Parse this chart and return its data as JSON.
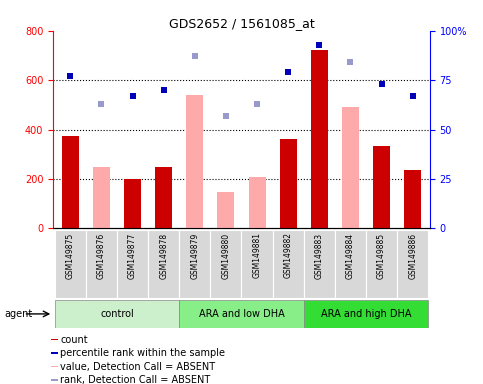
{
  "title": "GDS2652 / 1561085_at",
  "samples": [
    "GSM149875",
    "GSM149876",
    "GSM149877",
    "GSM149878",
    "GSM149879",
    "GSM149880",
    "GSM149881",
    "GSM149882",
    "GSM149883",
    "GSM149884",
    "GSM149885",
    "GSM149886"
  ],
  "groups": [
    {
      "label": "control",
      "color": "#ccf0cc",
      "start": 0,
      "end": 4
    },
    {
      "label": "ARA and low DHA",
      "color": "#88ee88",
      "start": 4,
      "end": 8
    },
    {
      "label": "ARA and high DHA",
      "color": "#33dd33",
      "start": 8,
      "end": 12
    }
  ],
  "bar_present_color": "#cc0000",
  "bar_absent_color": "#ffaaaa",
  "dot_present_color": "#0000bb",
  "dot_absent_color": "#9999cc",
  "present": [
    true,
    false,
    true,
    true,
    false,
    false,
    false,
    true,
    true,
    false,
    true,
    true
  ],
  "count_values": [
    375,
    250,
    200,
    248,
    540,
    148,
    207,
    360,
    720,
    490,
    335,
    235
  ],
  "percentile_values": [
    77,
    63,
    67,
    70,
    87,
    57,
    63,
    79,
    93,
    84,
    73,
    67
  ],
  "ylim_left": [
    0,
    800
  ],
  "ylim_right": [
    0,
    100
  ],
  "yticks_left": [
    0,
    200,
    400,
    600,
    800
  ],
  "yticks_right": [
    0,
    25,
    50,
    75,
    100
  ],
  "legend_items": [
    {
      "color": "#cc0000",
      "label": "count"
    },
    {
      "color": "#0000bb",
      "label": "percentile rank within the sample"
    },
    {
      "color": "#ffaaaa",
      "label": "value, Detection Call = ABSENT"
    },
    {
      "color": "#9999cc",
      "label": "rank, Detection Call = ABSENT"
    }
  ],
  "agent_label": "agent",
  "figsize": [
    4.83,
    3.84
  ],
  "dpi": 100
}
